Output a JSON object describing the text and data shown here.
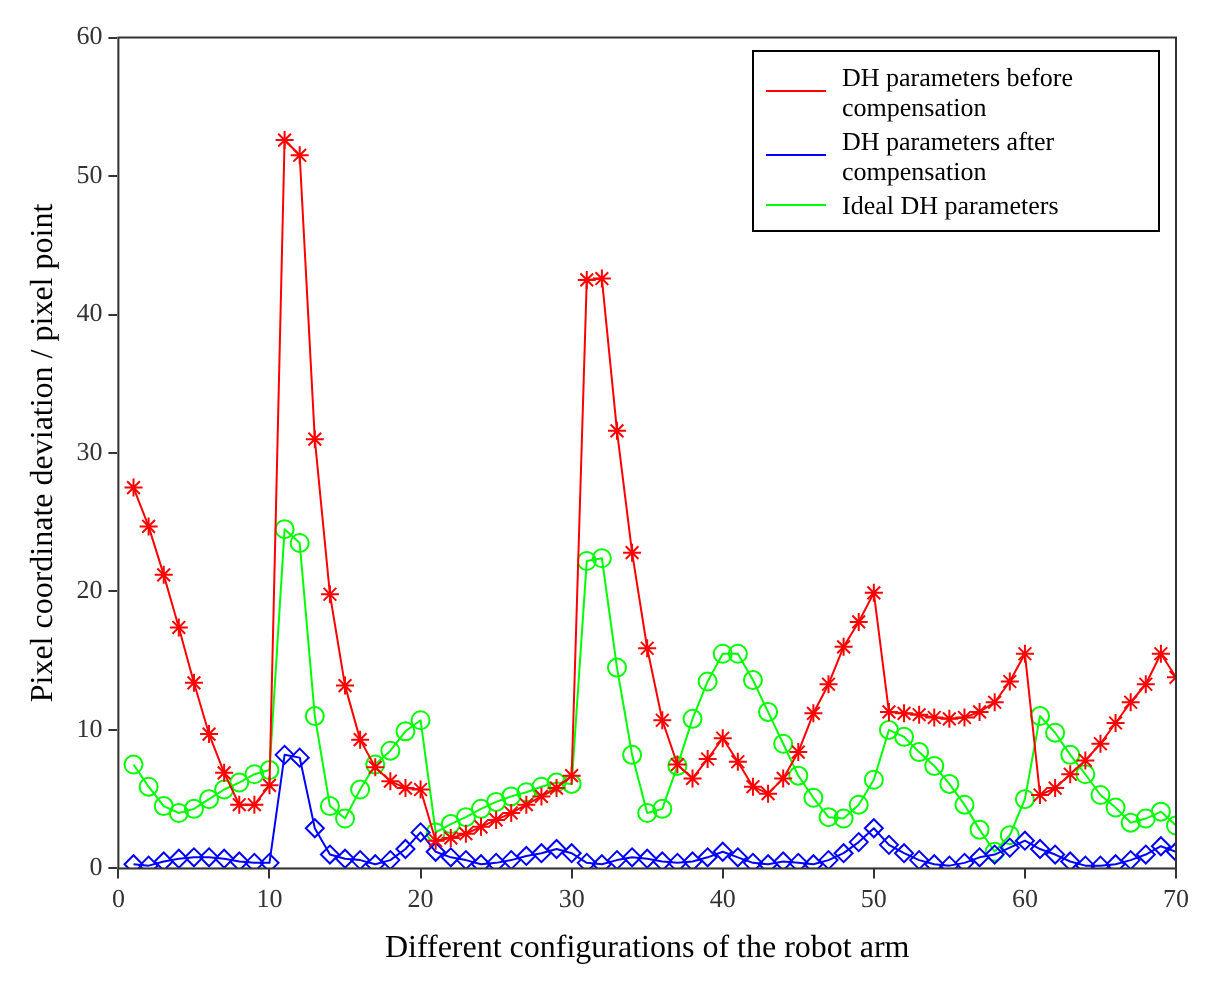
{
  "chart_data": {
    "type": "line",
    "xlabel": "Different configurations of the robot arm",
    "ylabel": "Pixel coordinate deviation / pixel point",
    "x": [
      1,
      2,
      3,
      4,
      5,
      6,
      7,
      8,
      9,
      10,
      11,
      12,
      13,
      14,
      15,
      16,
      17,
      18,
      19,
      20,
      21,
      22,
      23,
      24,
      25,
      26,
      27,
      28,
      29,
      30,
      31,
      32,
      33,
      34,
      35,
      36,
      37,
      38,
      39,
      40,
      41,
      42,
      43,
      44,
      45,
      46,
      47,
      48,
      49,
      50,
      51,
      52,
      53,
      54,
      55,
      56,
      57,
      58,
      59,
      60,
      61,
      62,
      63,
      64,
      65,
      66,
      67,
      68,
      69,
      70
    ],
    "xlim": [
      0,
      70
    ],
    "xticks": [
      0,
      10,
      20,
      30,
      40,
      50,
      60,
      70
    ],
    "ylim": [
      0,
      60
    ],
    "yticks": [
      0,
      10,
      20,
      30,
      40,
      50,
      60
    ],
    "grid": false,
    "legend": "top right",
    "line_style": "solid",
    "series": [
      {
        "name": "DH parameters before compensation",
        "color": "#ff0000",
        "marker": "cross",
        "values": [
          27.5,
          24.7,
          21.2,
          17.4,
          13.4,
          9.7,
          6.9,
          4.6,
          4.6,
          6.0,
          52.6,
          51.5,
          31.0,
          19.8,
          13.2,
          9.3,
          7.3,
          6.3,
          5.8,
          5.7,
          2.0,
          2.2,
          2.5,
          3.0,
          3.5,
          4.0,
          4.6,
          5.2,
          5.8,
          6.7,
          42.5,
          42.6,
          31.6,
          22.8,
          15.9,
          10.7,
          7.5,
          6.5,
          7.9,
          9.4,
          7.7,
          5.9,
          5.4,
          6.5,
          8.4,
          11.2,
          13.3,
          16.0,
          17.8,
          19.9,
          11.3,
          11.2,
          11.1,
          10.9,
          10.8,
          10.9,
          11.3,
          12.0,
          13.5,
          15.5,
          5.3,
          5.8,
          6.8,
          7.8,
          9.0,
          10.5,
          12.0,
          13.3,
          15.5,
          13.8
        ]
      },
      {
        "name": "DH parameters after compensation",
        "color": "#0000ff",
        "marker": "diamond",
        "values": [
          0.3,
          0.2,
          0.5,
          0.7,
          0.8,
          0.8,
          0.7,
          0.5,
          0.4,
          0.4,
          8.2,
          8.0,
          2.9,
          1.0,
          0.7,
          0.6,
          0.3,
          0.6,
          1.4,
          2.6,
          1.2,
          0.8,
          0.6,
          0.3,
          0.4,
          0.6,
          0.9,
          1.1,
          1.4,
          1.1,
          0.4,
          0.3,
          0.6,
          0.8,
          0.7,
          0.5,
          0.4,
          0.5,
          0.8,
          1.2,
          0.8,
          0.4,
          0.3,
          0.5,
          0.4,
          0.3,
          0.6,
          1.1,
          1.9,
          2.9,
          1.7,
          1.1,
          0.6,
          0.3,
          0.2,
          0.4,
          0.8,
          1.0,
          1.5,
          2.0,
          1.4,
          1.0,
          0.5,
          0.2,
          0.2,
          0.3,
          0.6,
          1.0,
          1.6,
          1.2
        ]
      },
      {
        "name": "Ideal DH parameters",
        "color": "#00ff00",
        "marker": "circle",
        "values": [
          7.5,
          5.9,
          4.5,
          4.0,
          4.3,
          5.0,
          5.7,
          6.2,
          6.8,
          7.1,
          24.5,
          23.5,
          11.0,
          4.5,
          3.6,
          5.7,
          7.5,
          8.5,
          9.9,
          10.7,
          2.6,
          3.2,
          3.7,
          4.3,
          4.8,
          5.2,
          5.5,
          5.9,
          6.2,
          6.1,
          22.2,
          22.4,
          14.5,
          8.2,
          4.0,
          4.3,
          7.4,
          10.8,
          13.5,
          15.5,
          15.5,
          13.6,
          11.3,
          9.0,
          6.7,
          5.1,
          3.7,
          3.6,
          4.6,
          6.4,
          10.0,
          9.5,
          8.4,
          7.4,
          6.1,
          4.6,
          2.8,
          1.2,
          2.4,
          5.0,
          11.0,
          9.8,
          8.2,
          6.8,
          5.3,
          4.4,
          3.3,
          3.6,
          4.1,
          3.1
        ]
      }
    ]
  }
}
